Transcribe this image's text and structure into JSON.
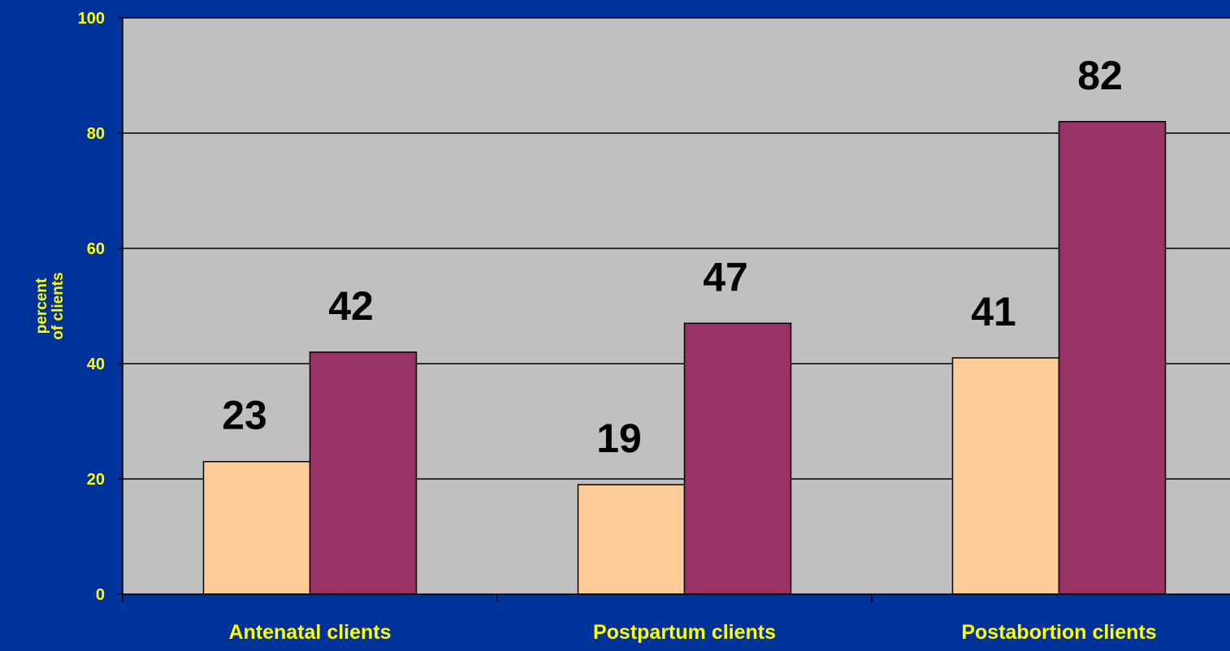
{
  "chart_data": {
    "type": "bar",
    "categories": [
      "Antenatal clients",
      "Postpartum clients",
      "Postabortion clients"
    ],
    "series": [
      {
        "values": [
          23,
          19,
          41
        ]
      },
      {
        "values": [
          42,
          47,
          82
        ]
      }
    ],
    "ylabel": "percent\nof clients",
    "ylim": [
      0,
      100
    ],
    "yticks": [
      0,
      20,
      40,
      60,
      80,
      100
    ],
    "grid": true,
    "legend": "none",
    "colors": {
      "background": "#003399",
      "plot_area": "#C0C0C0",
      "series": [
        "#FFCC99",
        "#993366"
      ],
      "axis_text": "#FFFF00",
      "data_label": "#000000",
      "gridline": "#000000"
    }
  }
}
